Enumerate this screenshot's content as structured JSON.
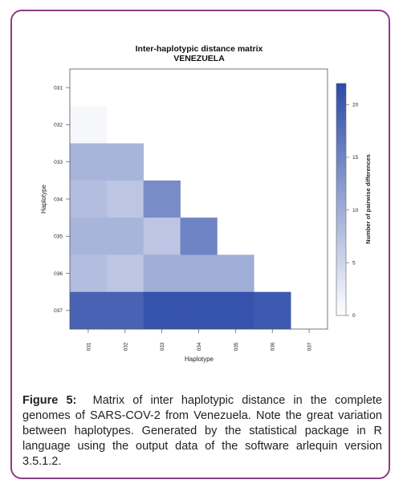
{
  "chart_data": {
    "type": "heatmap",
    "title": "Inter-haplotypic distance matrix",
    "subtitle": "VENEZUELA",
    "xlabel": "Haplotype",
    "ylabel": "Haplotype",
    "categories": [
      "031",
      "032",
      "033",
      "034",
      "035",
      "036",
      "037"
    ],
    "colorbar": {
      "label": "Number of pairwise differences",
      "range": [
        0,
        22
      ],
      "ticks": [
        0,
        5,
        10,
        15,
        20
      ],
      "low_color": "#ffffff",
      "high_color": "#2b4aa8"
    },
    "cells": [
      {
        "row": "032",
        "col": "031",
        "value": 1
      },
      {
        "row": "033",
        "col": "031",
        "value": 9
      },
      {
        "row": "033",
        "col": "032",
        "value": 9
      },
      {
        "row": "034",
        "col": "031",
        "value": 8
      },
      {
        "row": "034",
        "col": "032",
        "value": 7
      },
      {
        "row": "034",
        "col": "033",
        "value": 14
      },
      {
        "row": "035",
        "col": "031",
        "value": 9
      },
      {
        "row": "035",
        "col": "032",
        "value": 9
      },
      {
        "row": "035",
        "col": "033",
        "value": 7
      },
      {
        "row": "035",
        "col": "034",
        "value": 15
      },
      {
        "row": "036",
        "col": "031",
        "value": 8
      },
      {
        "row": "036",
        "col": "032",
        "value": 7
      },
      {
        "row": "036",
        "col": "033",
        "value": 10
      },
      {
        "row": "036",
        "col": "034",
        "value": 10
      },
      {
        "row": "036",
        "col": "035",
        "value": 10
      },
      {
        "row": "037",
        "col": "031",
        "value": 19
      },
      {
        "row": "037",
        "col": "032",
        "value": 19
      },
      {
        "row": "037",
        "col": "033",
        "value": 21
      },
      {
        "row": "037",
        "col": "034",
        "value": 21
      },
      {
        "row": "037",
        "col": "035",
        "value": 21
      },
      {
        "row": "037",
        "col": "036",
        "value": 20
      }
    ]
  },
  "caption": {
    "label": "Figure 5:",
    "text": "Matrix of inter haplotypic distance in the complete genomes of SARS-COV-2 from Venezuela. Note the great variation between haplotypes. Generated by the statistical package in R language using the output data of the software arlequin version 3.5.1.2."
  },
  "colors": {
    "frame": "#8a3e84"
  }
}
